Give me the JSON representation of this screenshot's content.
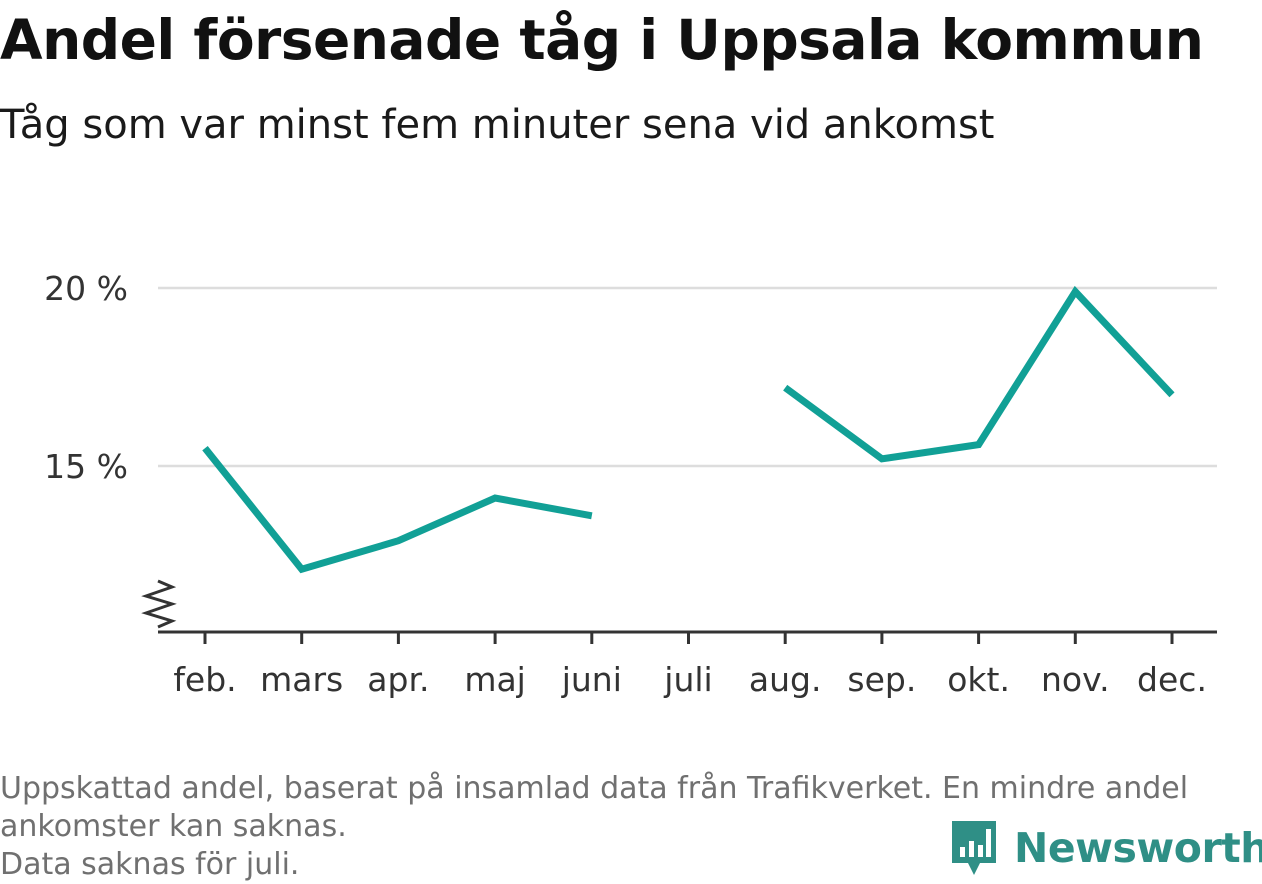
{
  "title": "Andel försenade tåg i Uppsala kommun",
  "subtitle": "Tåg som var minst fem minuter sena vid ankomst",
  "colors": {
    "line": "#11a096",
    "grid": "#dddddd",
    "axis": "#333333",
    "brand": "#2f8f86"
  },
  "chart_data": {
    "type": "line",
    "categories": [
      "feb.",
      "mars",
      "apr.",
      "maj",
      "juni",
      "juli",
      "aug.",
      "sep.",
      "okt.",
      "nov.",
      "dec."
    ],
    "series": [
      {
        "values": [
          15.5,
          12.1,
          12.9,
          14.1,
          13.6,
          null,
          17.2,
          15.2,
          15.6,
          19.9,
          17.0
        ]
      }
    ],
    "ylim": [
      11.0,
      21.0
    ],
    "yticks": [
      15,
      20
    ],
    "ytick_labels": [
      "15 %",
      "20 %"
    ],
    "y_axis_break": true,
    "grid": true
  },
  "footnote": {
    "line1": "Uppskattad andel, baserat på insamlad data från Trafikverket. En mindre andel",
    "line2": "ankomster kan saknas.",
    "line3": "Data saknas för juli."
  },
  "brand": {
    "name": "Newsworthy",
    "icon": "bar-chart-speech-bubble-icon"
  }
}
